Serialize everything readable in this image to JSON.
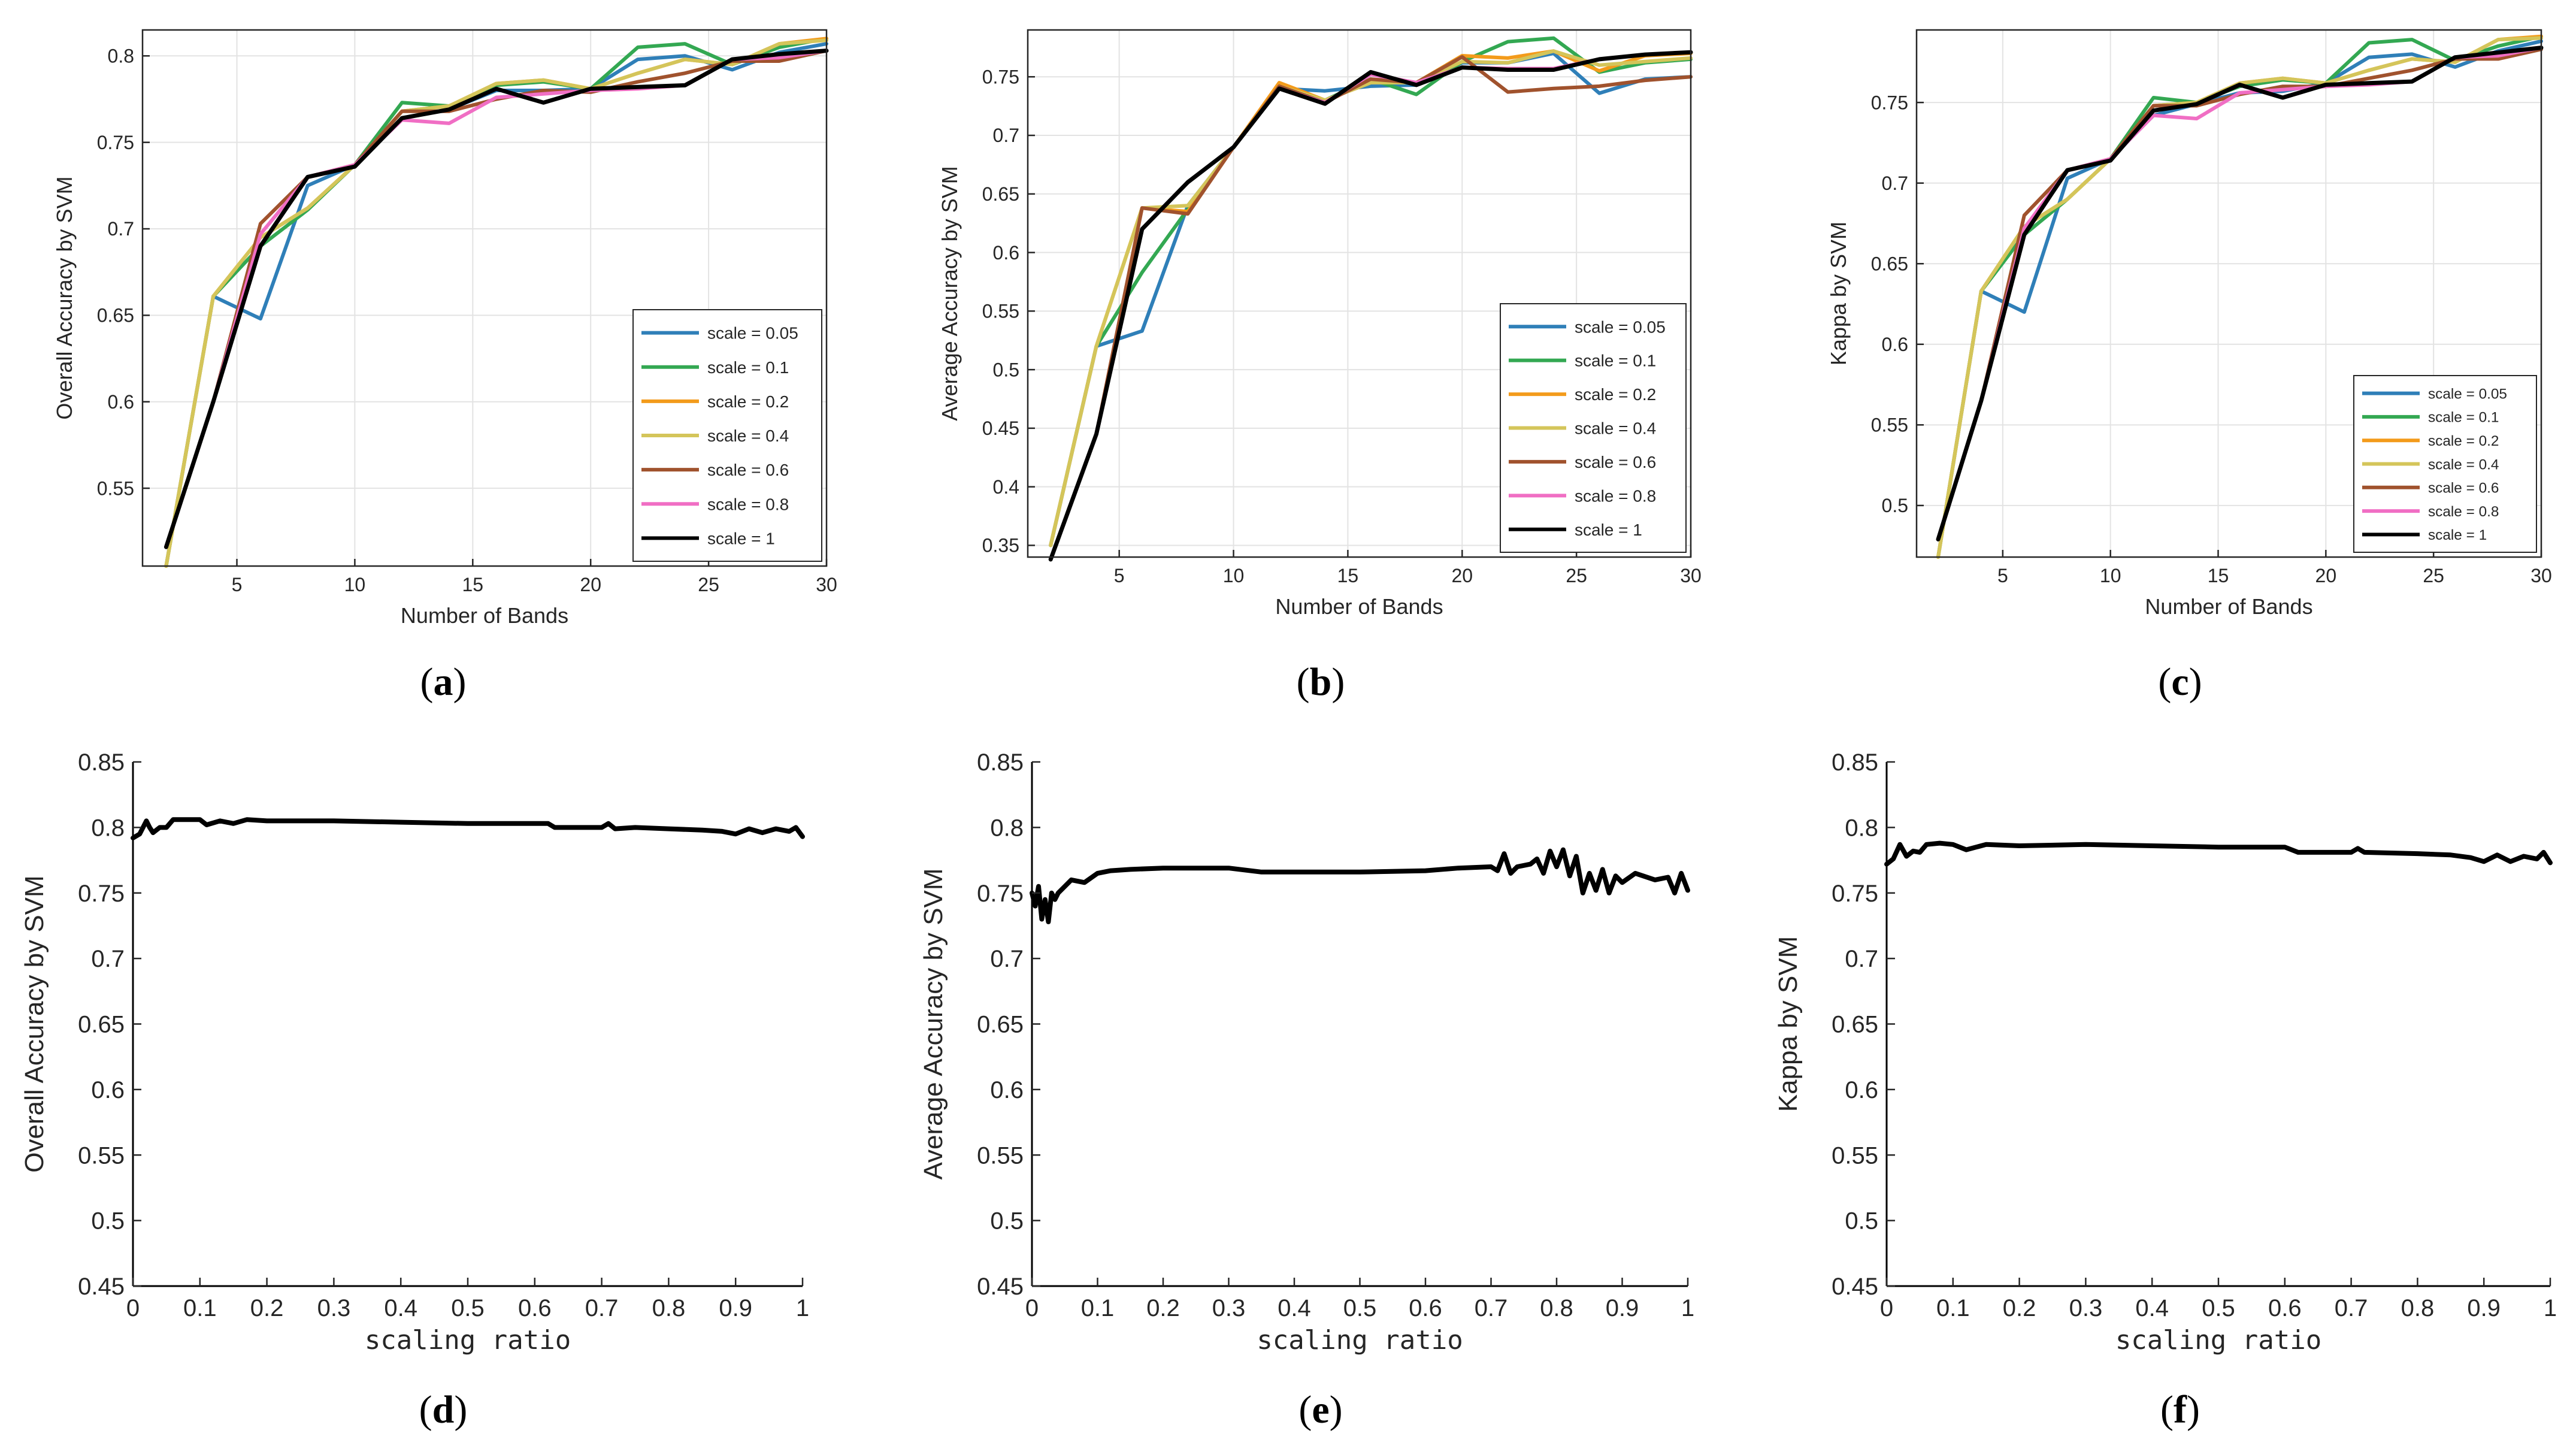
{
  "figure": {
    "captions": [
      "(a)",
      "(b)",
      "(c)",
      "(d)",
      "(e)",
      "(f)"
    ]
  },
  "chart_data": [
    {
      "panel": "a",
      "type": "line",
      "xlabel": "Number of Bands",
      "ylabel": "Overall Accuracy by SVM",
      "xlim": [
        1,
        30
      ],
      "ylim": [
        0.505,
        0.815
      ],
      "xticks": [
        5,
        10,
        15,
        20,
        25,
        30
      ],
      "yticks": [
        0.55,
        0.6,
        0.65,
        0.7,
        0.75,
        0.8
      ],
      "x": [
        2,
        4,
        6,
        8,
        10,
        12,
        14,
        16,
        18,
        20,
        22,
        24,
        26,
        28,
        30
      ],
      "legend_position": "bottom-right",
      "series": [
        {
          "name": "scale = 0.05",
          "color": "#2f7fb8",
          "values": [
            0.505,
            0.661,
            0.648,
            0.725,
            0.737,
            0.764,
            0.769,
            0.78,
            0.78,
            0.781,
            0.798,
            0.8,
            0.792,
            0.802,
            0.807
          ]
        },
        {
          "name": "scale = 0.1",
          "color": "#33a852",
          "values": [
            0.505,
            0.661,
            0.69,
            0.711,
            0.737,
            0.773,
            0.771,
            0.783,
            0.785,
            0.781,
            0.805,
            0.807,
            0.795,
            0.805,
            0.81
          ]
        },
        {
          "name": "scale = 0.2",
          "color": "#f39b1b",
          "values": [
            0.505,
            0.661,
            0.695,
            0.712,
            0.737,
            0.768,
            0.771,
            0.784,
            0.786,
            0.781,
            0.79,
            0.798,
            0.795,
            0.807,
            0.81
          ]
        },
        {
          "name": "scale = 0.4",
          "color": "#d4c55a",
          "values": [
            0.505,
            0.661,
            0.695,
            0.712,
            0.737,
            0.768,
            0.771,
            0.784,
            0.786,
            0.781,
            0.79,
            0.798,
            0.795,
            0.807,
            0.809
          ]
        },
        {
          "name": "scale = 0.6",
          "color": "#a0522d",
          "values": [
            0.516,
            0.6,
            0.703,
            0.73,
            0.737,
            0.768,
            0.768,
            0.775,
            0.78,
            0.779,
            0.785,
            0.79,
            0.797,
            0.797,
            0.803
          ]
        },
        {
          "name": "scale = 0.8",
          "color": "#f06ec4",
          "values": [
            0.516,
            0.6,
            0.697,
            0.73,
            0.737,
            0.763,
            0.761,
            0.776,
            0.778,
            0.78,
            0.781,
            0.783,
            0.798,
            0.799,
            0.803
          ]
        },
        {
          "name": "scale = 1",
          "color": "#000000",
          "values": [
            0.516,
            0.6,
            0.69,
            0.73,
            0.736,
            0.764,
            0.769,
            0.781,
            0.773,
            0.781,
            0.782,
            0.783,
            0.798,
            0.801,
            0.803
          ]
        }
      ]
    },
    {
      "panel": "b",
      "type": "line",
      "xlabel": "Number of Bands",
      "ylabel": "Average Accuracy by SVM",
      "xlim": [
        1,
        30
      ],
      "ylim": [
        0.34,
        0.79
      ],
      "xticks": [
        5,
        10,
        15,
        20,
        25,
        30
      ],
      "yticks": [
        0.35,
        0.4,
        0.45,
        0.5,
        0.55,
        0.6,
        0.65,
        0.7,
        0.75
      ],
      "x": [
        2,
        4,
        6,
        8,
        10,
        12,
        14,
        16,
        18,
        20,
        22,
        24,
        26,
        28,
        30
      ],
      "legend_position": "bottom-right",
      "series": [
        {
          "name": "scale = 0.05",
          "color": "#2f7fb8",
          "values": [
            0.35,
            0.52,
            0.533,
            0.64,
            0.69,
            0.74,
            0.738,
            0.742,
            0.743,
            0.762,
            0.762,
            0.77,
            0.736,
            0.748,
            0.75
          ]
        },
        {
          "name": "scale = 0.1",
          "color": "#33a852",
          "values": [
            0.35,
            0.52,
            0.583,
            0.637,
            0.69,
            0.742,
            0.73,
            0.748,
            0.735,
            0.763,
            0.78,
            0.783,
            0.754,
            0.762,
            0.765
          ]
        },
        {
          "name": "scale = 0.2",
          "color": "#f39b1b",
          "values": [
            0.35,
            0.52,
            0.638,
            0.635,
            0.69,
            0.745,
            0.73,
            0.745,
            0.745,
            0.768,
            0.766,
            0.772,
            0.755,
            0.768,
            0.77
          ]
        },
        {
          "name": "scale = 0.4",
          "color": "#d4c55a",
          "values": [
            0.35,
            0.52,
            0.638,
            0.64,
            0.69,
            0.742,
            0.73,
            0.745,
            0.745,
            0.763,
            0.762,
            0.772,
            0.76,
            0.763,
            0.766
          ]
        },
        {
          "name": "scale = 0.6",
          "color": "#a0522d",
          "values": [
            0.338,
            0.445,
            0.638,
            0.633,
            0.69,
            0.742,
            0.728,
            0.748,
            0.745,
            0.767,
            0.737,
            0.74,
            0.742,
            0.747,
            0.75
          ]
        },
        {
          "name": "scale = 0.8",
          "color": "#f06ec4",
          "values": [
            0.338,
            0.445,
            0.62,
            0.66,
            0.69,
            0.74,
            0.728,
            0.752,
            0.745,
            0.758,
            0.757,
            0.757,
            0.765,
            0.769,
            0.771
          ]
        },
        {
          "name": "scale = 1",
          "color": "#000000",
          "values": [
            0.338,
            0.445,
            0.62,
            0.66,
            0.69,
            0.74,
            0.727,
            0.754,
            0.743,
            0.758,
            0.756,
            0.756,
            0.765,
            0.769,
            0.771
          ]
        }
      ]
    },
    {
      "panel": "c",
      "type": "line",
      "xlabel": "Number of Bands",
      "ylabel": "Kappa by SVM",
      "xlim": [
        1,
        30
      ],
      "ylim": [
        0.468,
        0.795
      ],
      "xticks": [
        5,
        10,
        15,
        20,
        25,
        30
      ],
      "yticks": [
        0.5,
        0.55,
        0.6,
        0.65,
        0.7,
        0.75
      ],
      "x": [
        2,
        4,
        6,
        8,
        10,
        12,
        14,
        16,
        18,
        20,
        22,
        24,
        26,
        28,
        30
      ],
      "legend_position": "bottom-right",
      "series": [
        {
          "name": "scale = 0.05",
          "color": "#2f7fb8",
          "values": [
            0.468,
            0.633,
            0.62,
            0.703,
            0.715,
            0.742,
            0.749,
            0.756,
            0.757,
            0.762,
            0.778,
            0.78,
            0.772,
            0.782,
            0.788
          ]
        },
        {
          "name": "scale = 0.1",
          "color": "#33a852",
          "values": [
            0.468,
            0.633,
            0.668,
            0.69,
            0.715,
            0.753,
            0.75,
            0.76,
            0.764,
            0.762,
            0.787,
            0.789,
            0.776,
            0.785,
            0.791
          ]
        },
        {
          "name": "scale = 0.2",
          "color": "#f39b1b",
          "values": [
            0.468,
            0.633,
            0.673,
            0.69,
            0.715,
            0.748,
            0.75,
            0.762,
            0.765,
            0.762,
            0.77,
            0.777,
            0.775,
            0.789,
            0.791
          ]
        },
        {
          "name": "scale = 0.4",
          "color": "#d4c55a",
          "values": [
            0.468,
            0.633,
            0.673,
            0.69,
            0.715,
            0.748,
            0.75,
            0.762,
            0.765,
            0.762,
            0.77,
            0.777,
            0.775,
            0.789,
            0.79
          ]
        },
        {
          "name": "scale = 0.6",
          "color": "#a0522d",
          "values": [
            0.479,
            0.565,
            0.68,
            0.708,
            0.715,
            0.748,
            0.748,
            0.755,
            0.76,
            0.76,
            0.765,
            0.77,
            0.777,
            0.777,
            0.783
          ]
        },
        {
          "name": "scale = 0.8",
          "color": "#f06ec4",
          "values": [
            0.479,
            0.565,
            0.672,
            0.708,
            0.715,
            0.742,
            0.74,
            0.756,
            0.758,
            0.76,
            0.761,
            0.763,
            0.778,
            0.779,
            0.784
          ]
        },
        {
          "name": "scale = 1",
          "color": "#000000",
          "values": [
            0.479,
            0.565,
            0.668,
            0.708,
            0.714,
            0.745,
            0.749,
            0.761,
            0.753,
            0.761,
            0.762,
            0.763,
            0.778,
            0.781,
            0.784
          ]
        }
      ]
    },
    {
      "panel": "d",
      "type": "line",
      "xlabel": "scaling ratio",
      "ylabel": "Overall Accuracy by SVM",
      "xlim": [
        0,
        1
      ],
      "ylim": [
        0.45,
        0.85
      ],
      "xticks": [
        0,
        0.1,
        0.2,
        0.3,
        0.4,
        0.5,
        0.6,
        0.7,
        0.8,
        0.9,
        1
      ],
      "yticks": [
        0.45,
        0.5,
        0.55,
        0.6,
        0.65,
        0.7,
        0.75,
        0.8,
        0.85
      ],
      "series": [
        {
          "name": "scaling ratio curve",
          "color": "#000000",
          "x": [
            0.0,
            0.01,
            0.02,
            0.025,
            0.03,
            0.04,
            0.05,
            0.06,
            0.08,
            0.1,
            0.11,
            0.13,
            0.15,
            0.17,
            0.2,
            0.3,
            0.4,
            0.5,
            0.62,
            0.63,
            0.7,
            0.71,
            0.72,
            0.75,
            0.8,
            0.85,
            0.88,
            0.9,
            0.92,
            0.94,
            0.96,
            0.98,
            0.99,
            1.0
          ],
          "values": [
            0.792,
            0.795,
            0.805,
            0.8,
            0.796,
            0.8,
            0.8,
            0.806,
            0.806,
            0.806,
            0.802,
            0.805,
            0.803,
            0.806,
            0.805,
            0.805,
            0.804,
            0.803,
            0.803,
            0.8,
            0.8,
            0.803,
            0.799,
            0.8,
            0.799,
            0.798,
            0.797,
            0.795,
            0.799,
            0.796,
            0.799,
            0.797,
            0.8,
            0.793
          ]
        }
      ]
    },
    {
      "panel": "e",
      "type": "line",
      "xlabel": "scaling ratio",
      "ylabel": "Average Accuracy by SVM",
      "xlim": [
        0,
        1
      ],
      "ylim": [
        0.45,
        0.85
      ],
      "xticks": [
        0,
        0.1,
        0.2,
        0.3,
        0.4,
        0.5,
        0.6,
        0.7,
        0.8,
        0.9,
        1
      ],
      "yticks": [
        0.45,
        0.5,
        0.55,
        0.6,
        0.65,
        0.7,
        0.75,
        0.8,
        0.85
      ],
      "series": [
        {
          "name": "scaling ratio curve",
          "color": "#000000",
          "x": [
            0.0,
            0.005,
            0.01,
            0.015,
            0.02,
            0.025,
            0.03,
            0.035,
            0.04,
            0.06,
            0.08,
            0.1,
            0.12,
            0.15,
            0.2,
            0.3,
            0.35,
            0.5,
            0.6,
            0.65,
            0.7,
            0.71,
            0.72,
            0.73,
            0.74,
            0.76,
            0.77,
            0.78,
            0.79,
            0.8,
            0.81,
            0.82,
            0.83,
            0.84,
            0.85,
            0.86,
            0.87,
            0.88,
            0.89,
            0.9,
            0.92,
            0.95,
            0.97,
            0.98,
            0.99,
            1.0
          ],
          "values": [
            0.75,
            0.74,
            0.755,
            0.73,
            0.745,
            0.728,
            0.75,
            0.745,
            0.75,
            0.76,
            0.758,
            0.765,
            0.767,
            0.768,
            0.769,
            0.769,
            0.766,
            0.766,
            0.767,
            0.769,
            0.77,
            0.767,
            0.78,
            0.765,
            0.77,
            0.772,
            0.776,
            0.765,
            0.782,
            0.77,
            0.783,
            0.763,
            0.778,
            0.75,
            0.765,
            0.752,
            0.768,
            0.75,
            0.763,
            0.758,
            0.765,
            0.76,
            0.762,
            0.75,
            0.765,
            0.752
          ]
        }
      ]
    },
    {
      "panel": "f",
      "type": "line",
      "xlabel": "scaling ratio",
      "ylabel": "Kappa by SVM",
      "xlim": [
        0,
        1
      ],
      "ylim": [
        0.45,
        0.85
      ],
      "xticks": [
        0,
        0.1,
        0.2,
        0.3,
        0.4,
        0.5,
        0.6,
        0.7,
        0.8,
        0.9,
        1
      ],
      "yticks": [
        0.45,
        0.5,
        0.55,
        0.6,
        0.65,
        0.7,
        0.75,
        0.8,
        0.85
      ],
      "series": [
        {
          "name": "scaling ratio curve",
          "color": "#000000",
          "x": [
            0.0,
            0.01,
            0.02,
            0.03,
            0.04,
            0.05,
            0.06,
            0.08,
            0.1,
            0.12,
            0.15,
            0.2,
            0.3,
            0.4,
            0.5,
            0.6,
            0.62,
            0.7,
            0.71,
            0.72,
            0.8,
            0.85,
            0.88,
            0.9,
            0.92,
            0.94,
            0.96,
            0.98,
            0.99,
            1.0
          ],
          "values": [
            0.772,
            0.776,
            0.787,
            0.778,
            0.782,
            0.781,
            0.787,
            0.788,
            0.787,
            0.783,
            0.787,
            0.786,
            0.787,
            0.786,
            0.785,
            0.785,
            0.781,
            0.781,
            0.784,
            0.781,
            0.78,
            0.779,
            0.777,
            0.774,
            0.779,
            0.774,
            0.778,
            0.776,
            0.781,
            0.773
          ]
        }
      ]
    }
  ]
}
